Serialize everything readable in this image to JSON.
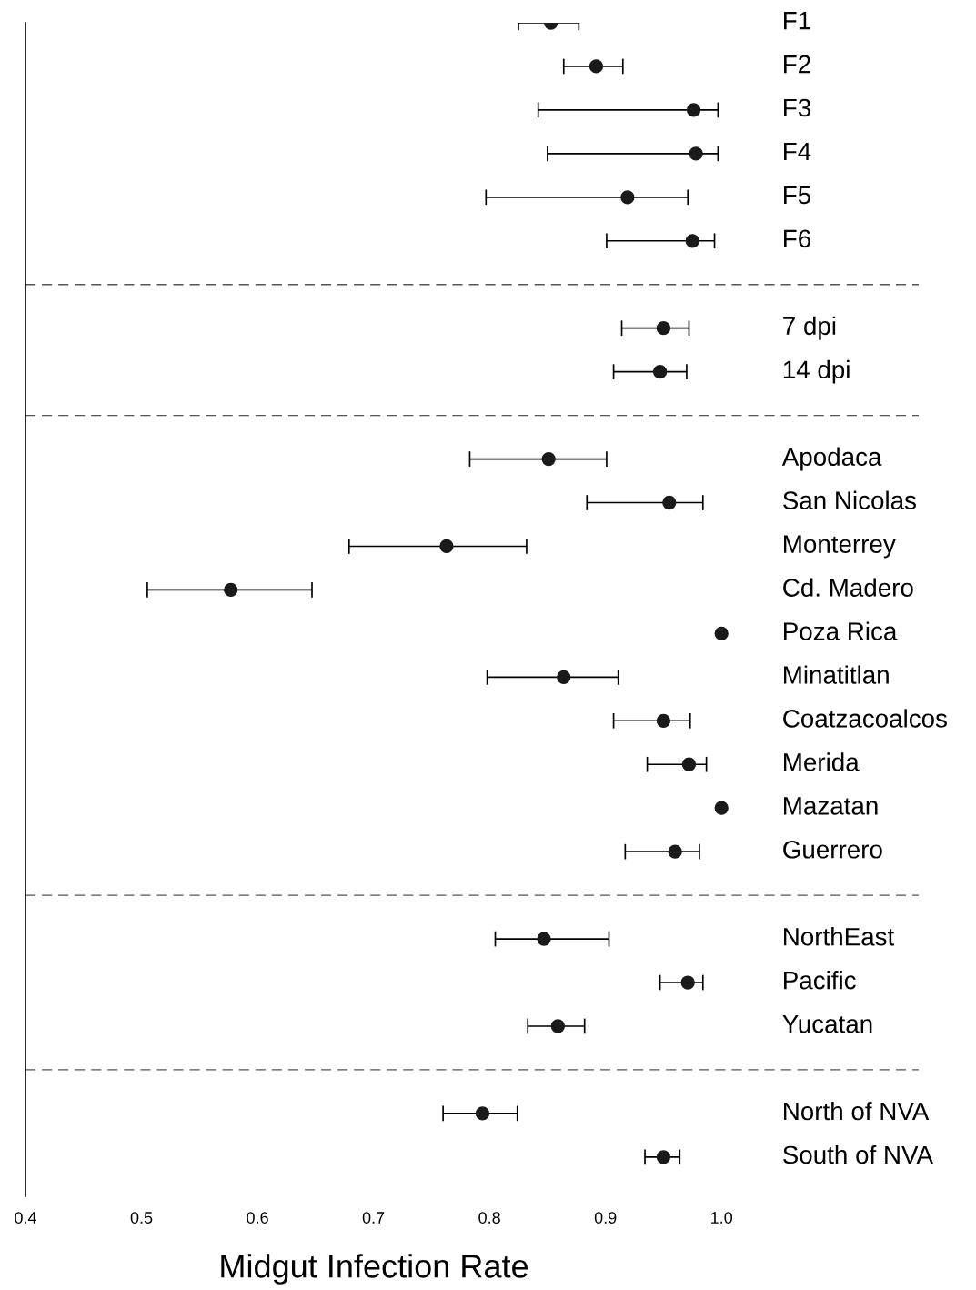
{
  "chart_data": {
    "type": "scatter",
    "orientation": "horizontal",
    "xlabel": "Midgut Infection Rate",
    "categories": [
      "F1",
      "F2",
      "F3",
      "F4",
      "F5",
      "F6",
      null,
      "7 dpi",
      "14 dpi",
      null,
      "Apodaca",
      "San Nicolas",
      "Monterrey",
      "Cd. Madero",
      "Poza Rica",
      "Minatitlan",
      "Coatzacoalcos",
      "Merida",
      "Mazatan",
      "Guerrero",
      null,
      "NorthEast",
      "Pacific",
      "Yucatan",
      null,
      "North of NVA",
      "South of NVA"
    ],
    "values": [
      0.853,
      0.892,
      0.976,
      0.978,
      0.919,
      0.975,
      null,
      0.95,
      0.947,
      null,
      0.851,
      0.955,
      0.763,
      0.577,
      1.0,
      0.864,
      0.95,
      0.972,
      1.0,
      0.96,
      null,
      0.847,
      0.971,
      0.859,
      null,
      0.794,
      0.95
    ],
    "errors": [
      [
        0.825,
        0.877
      ],
      [
        0.864,
        0.915
      ],
      [
        0.842,
        0.997
      ],
      [
        0.85,
        0.997
      ],
      [
        0.797,
        0.971
      ],
      [
        0.901,
        0.994
      ],
      null,
      [
        0.914,
        0.972
      ],
      [
        0.907,
        0.97
      ],
      null,
      [
        0.783,
        0.901
      ],
      [
        0.884,
        0.984
      ],
      [
        0.679,
        0.832
      ],
      [
        0.505,
        0.647
      ],
      null,
      [
        0.798,
        0.911
      ],
      [
        0.907,
        0.973
      ],
      [
        0.936,
        0.987
      ],
      null,
      [
        0.917,
        0.981
      ],
      null,
      [
        0.805,
        0.903
      ],
      [
        0.947,
        0.984
      ],
      [
        0.833,
        0.882
      ],
      null,
      [
        0.76,
        0.824
      ],
      [
        0.934,
        0.964
      ]
    ],
    "color": "#1a1a1a",
    "marker": "circle",
    "xlim": [
      0.4,
      1.17
    ],
    "xticks": [
      {
        "value": 0.4,
        "label": "0.4"
      },
      {
        "value": 0.5,
        "label": "0.5"
      },
      {
        "value": 0.6,
        "label": "0.6"
      },
      {
        "value": 0.7,
        "label": "0.7"
      },
      {
        "value": 0.8,
        "label": "0.8"
      },
      {
        "value": 0.9,
        "label": "0.9"
      },
      {
        "value": 1.0,
        "label": "1.0"
      }
    ],
    "grid": false,
    "legend": false
  }
}
